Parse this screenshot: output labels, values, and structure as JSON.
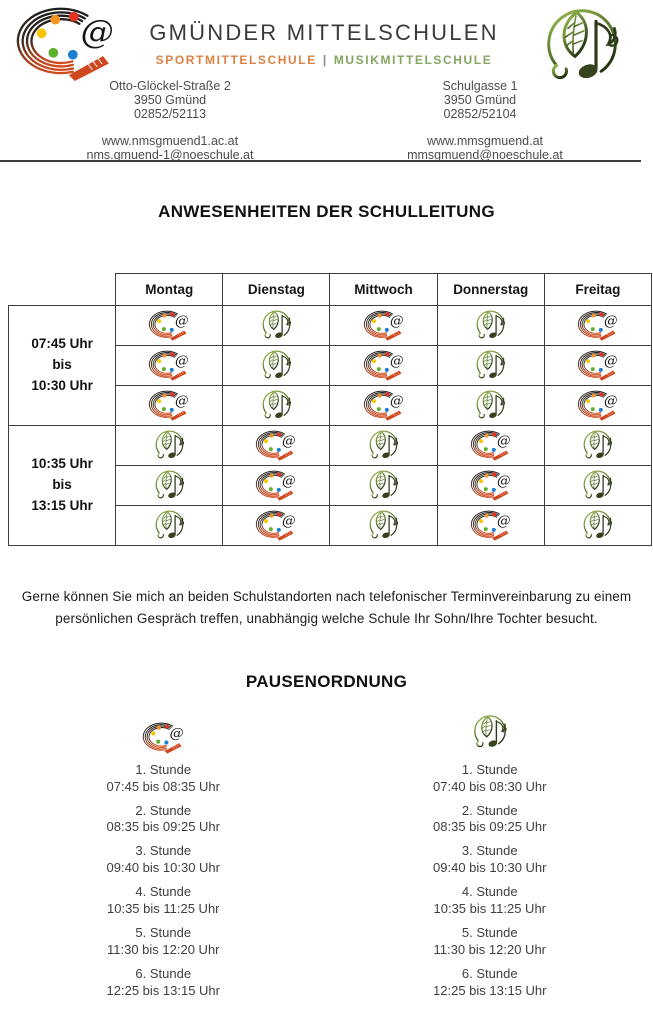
{
  "header": {
    "school_name": "GMÜNDER MITTELSCHULEN",
    "subtitle": {
      "sport": "SPORTMITTELSCHULE",
      "separator": "|",
      "music": "MUSIKMITTELSCHULE"
    },
    "sport_site": {
      "address": [
        "Otto-Glöckel-Straße 2",
        "3950 Gmünd",
        "02852/52113"
      ],
      "links": [
        "www.nmsgmuend1.ac.at",
        "nms.gmuend-1@noeschule.at"
      ]
    },
    "music_site": {
      "address": [
        "Schulgasse 1",
        "3950 Gmünd",
        "02852/52104"
      ],
      "links": [
        "www.mmsgmuend.at",
        "mmsgmuend@noeschule.at"
      ]
    }
  },
  "colors": {
    "sport_accent": "#DC8244",
    "music_accent": "#85A562"
  },
  "icons": {
    "sport": "sport-school-logo",
    "music": "music-school-logo"
  },
  "attendance": {
    "title": "ANWESENHEITEN DER SCHULLEITUNG",
    "days": [
      "Montag",
      "Dienstag",
      "Mittwoch",
      "Donnerstag",
      "Freitag"
    ],
    "blocks": [
      {
        "time_lines": [
          "07:45 Uhr",
          "bis",
          "10:30 Uhr"
        ],
        "sub_rows": 3,
        "day_logos": [
          "sport",
          "music",
          "sport",
          "music",
          "sport"
        ]
      },
      {
        "time_lines": [
          "10:35 Uhr",
          "bis",
          "13:15 Uhr"
        ],
        "sub_rows": 3,
        "day_logos": [
          "music",
          "sport",
          "music",
          "sport",
          "music"
        ]
      }
    ]
  },
  "note_text": "Gerne können Sie mich an beiden Schulstandorten nach telefonischer Terminvereinbarung zu einem persönlichen Gespräch treffen, unabhängig welche Schule Ihr Sohn/Ihre Tochter besucht.",
  "pause": {
    "title": "PAUSENORDNUNG",
    "columns": [
      {
        "school": "sport",
        "periods": [
          {
            "label": "1. Stunde",
            "time": "07:45 bis 08:35 Uhr"
          },
          {
            "label": "2. Stunde",
            "time": "08:35 bis 09:25 Uhr"
          },
          {
            "label": "3. Stunde",
            "time": "09:40 bis 10:30 Uhr"
          },
          {
            "label": "4. Stunde",
            "time": "10:35 bis 11:25 Uhr"
          },
          {
            "label": "5. Stunde",
            "time": "11:30 bis 12:20 Uhr"
          },
          {
            "label": "6. Stunde",
            "time": "12:25 bis 13:15 Uhr"
          }
        ]
      },
      {
        "school": "music",
        "periods": [
          {
            "label": "1. Stunde",
            "time": "07:40 bis 08:30 Uhr"
          },
          {
            "label": "2. Stunde",
            "time": "08:35 bis 09:25 Uhr"
          },
          {
            "label": "3. Stunde",
            "time": "09:40 bis 10:30 Uhr"
          },
          {
            "label": "4. Stunde",
            "time": "10:35 bis 11:25 Uhr"
          },
          {
            "label": "5. Stunde",
            "time": "11:30 bis 12:20 Uhr"
          },
          {
            "label": "6. Stunde",
            "time": "12:25 bis 13:15 Uhr"
          }
        ]
      }
    ]
  }
}
